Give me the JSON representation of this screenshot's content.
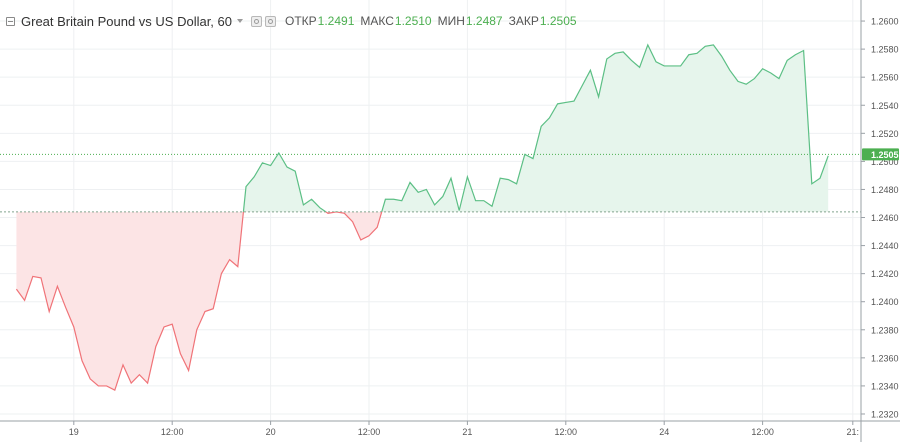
{
  "legend": {
    "symbol": "Great Britain Pound vs US Dollar, 60",
    "open_label": "ОТКР",
    "open_value": "1.2491",
    "high_label": "МАКС",
    "high_value": "1.2510",
    "low_label": "МИН",
    "low_value": "1.2487",
    "close_label": "ЗАКР",
    "close_value": "1.2505"
  },
  "price_badge": "1.2505",
  "colors": {
    "up_line": "#5cbf85",
    "up_fill": "#e6f5ec",
    "down_line": "#f07378",
    "down_fill": "#fce4e5",
    "close_line": "#4caf50",
    "baseline": "#82a58f",
    "badge_bg": "#4caf50",
    "grid": "#eef0f2",
    "axis_text": "#555555"
  },
  "chart_data": {
    "type": "area",
    "style": "baseline",
    "baseline_value": 1.2464,
    "last_value": 1.2505,
    "ylim": [
      1.2315,
      1.2615
    ],
    "y_ticks": [
      "1.2320",
      "1.2340",
      "1.2360",
      "1.2380",
      "1.2400",
      "1.2420",
      "1.2440",
      "1.2460",
      "1.2480",
      "1.2500",
      "1.2520",
      "1.2540",
      "1.2560",
      "1.2580",
      "1.2600"
    ],
    "x_ticks": [
      "19",
      "12:00",
      "20",
      "12:00",
      "21",
      "12:00",
      "24",
      "12:00",
      "21:"
    ],
    "x_tick_positions": [
      7,
      19,
      31,
      43,
      55,
      67,
      79,
      91,
      102
    ],
    "x_range": [
      -2,
      103
    ],
    "values": [
      1.2409,
      1.2401,
      1.2418,
      1.2417,
      1.2393,
      1.2411,
      1.2396,
      1.2382,
      1.2358,
      1.2345,
      1.234,
      1.234,
      1.2337,
      1.2355,
      1.2342,
      1.2348,
      1.2342,
      1.2368,
      1.2382,
      1.2384,
      1.2363,
      1.2351,
      1.238,
      1.2393,
      1.2395,
      1.242,
      1.243,
      1.2425,
      1.2482,
      1.2489,
      1.2499,
      1.2497,
      1.2506,
      1.2496,
      1.2493,
      1.2469,
      1.2473,
      1.2467,
      1.2463,
      1.2464,
      1.2463,
      1.2457,
      1.2444,
      1.2447,
      1.2453,
      1.2473,
      1.2473,
      1.2472,
      1.2485,
      1.2478,
      1.248,
      1.2469,
      1.2475,
      1.2488,
      1.2465,
      1.2489,
      1.2472,
      1.2472,
      1.2468,
      1.2488,
      1.2487,
      1.2484,
      1.2505,
      1.2502,
      1.2525,
      1.2531,
      1.2541,
      1.2542,
      1.2543,
      1.2554,
      1.2565,
      1.2546,
      1.2573,
      1.2577,
      1.2578,
      1.2572,
      1.2567,
      1.2583,
      1.2571,
      1.2568,
      1.2568,
      1.2568,
      1.2576,
      1.2577,
      1.2582,
      1.2583,
      1.2575,
      1.2565,
      1.2557,
      1.2555,
      1.2559,
      1.2566,
      1.2563,
      1.2559,
      1.2572,
      1.2576,
      1.2579,
      1.2484,
      1.2488,
      1.2504
    ]
  }
}
